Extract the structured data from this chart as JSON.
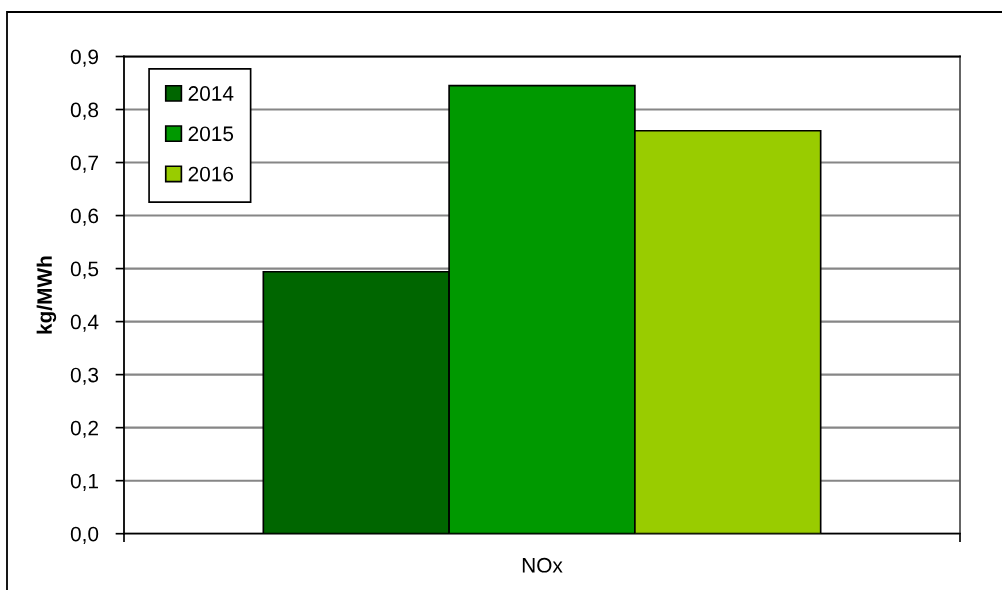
{
  "chart_data": {
    "type": "bar",
    "ylabel": "kg/MWh",
    "categories": [
      "NOx"
    ],
    "series": [
      {
        "name": "2014",
        "color": "#006600",
        "values": [
          0.494
        ]
      },
      {
        "name": "2015",
        "color": "#009900",
        "values": [
          0.845
        ]
      },
      {
        "name": "2016",
        "color": "#99cc00",
        "values": [
          0.76
        ]
      }
    ],
    "ylim": [
      0,
      0.9
    ],
    "yticks": [
      {
        "value": 0,
        "label": "0,0"
      },
      {
        "value": 0.1,
        "label": "0,1"
      },
      {
        "value": 0.2,
        "label": "0,2"
      },
      {
        "value": 0.3,
        "label": "0,3"
      },
      {
        "value": 0.4,
        "label": "0,4"
      },
      {
        "value": 0.5,
        "label": "0,5"
      },
      {
        "value": 0.6,
        "label": "0,6"
      },
      {
        "value": 0.7,
        "label": "0,7"
      },
      {
        "value": 0.8,
        "label": "0,8"
      },
      {
        "value": 0.9,
        "label": "0,9"
      }
    ],
    "grid": "y",
    "legend": "top left"
  }
}
